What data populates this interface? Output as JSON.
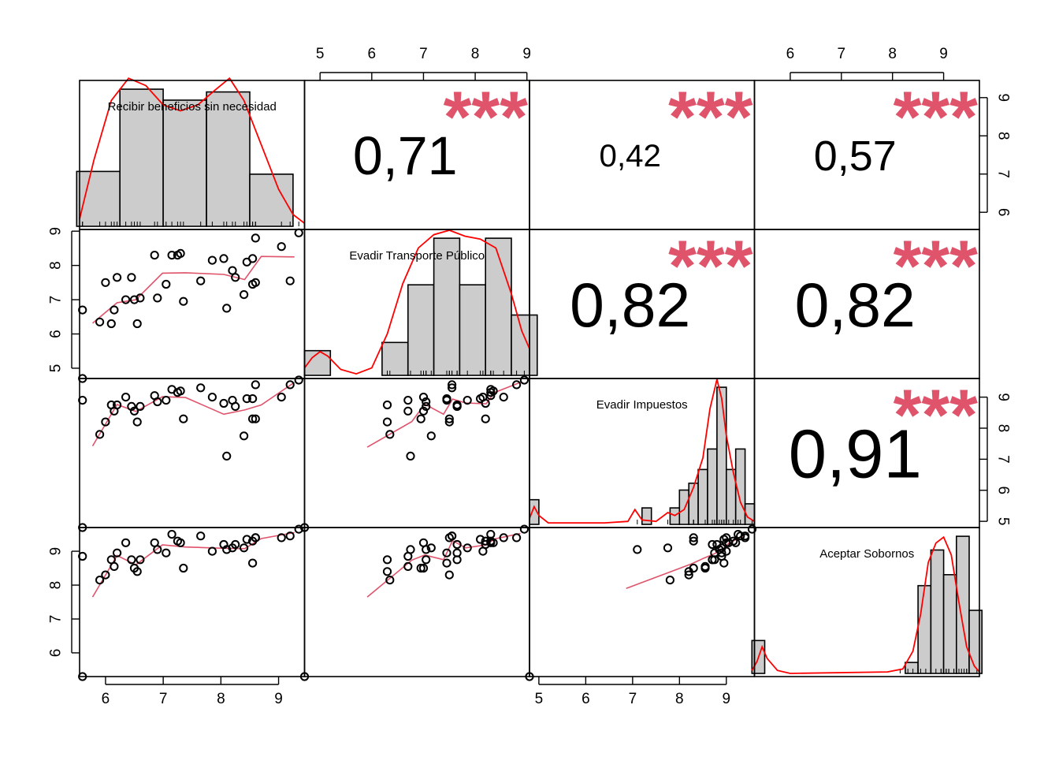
{
  "chart_data": {
    "type": "scatter-matrix",
    "variables": [
      "Recibir beneficios sin necesidad",
      "Evadir Transporte Público",
      "Evadir Impuestos",
      "Aceptar Sobornos"
    ],
    "ranges": [
      [
        5.55,
        9.45
      ],
      [
        4.7,
        9.05
      ],
      [
        4.8,
        9.6
      ],
      [
        5.3,
        9.7
      ]
    ],
    "ticks": [
      [
        "6",
        "7",
        "8",
        "9"
      ],
      [
        "5",
        "6",
        "7",
        "8",
        "9"
      ],
      [
        "5",
        "6",
        "7",
        "8",
        "9"
      ],
      [
        "6",
        "7",
        "8",
        "9"
      ]
    ],
    "correlations": [
      {
        "pair": [
          1,
          2
        ],
        "value": "0,71",
        "stars": "***",
        "scale": 1.1
      },
      {
        "pair": [
          1,
          3
        ],
        "value": "0,42",
        "stars": "***",
        "scale": 0.65
      },
      {
        "pair": [
          1,
          4
        ],
        "value": "0,57",
        "stars": "***",
        "scale": 0.87
      },
      {
        "pair": [
          2,
          3
        ],
        "value": "0,82",
        "stars": "***",
        "scale": 1.27
      },
      {
        "pair": [
          2,
          4
        ],
        "value": "0,82",
        "stars": "***",
        "scale": 1.27
      },
      {
        "pair": [
          3,
          4
        ],
        "value": "0,91",
        "stars": "***",
        "scale": 1.4
      }
    ],
    "observations": [
      [
        5.6,
        4.7,
        4.8,
        5.3
      ],
      [
        5.6,
        6.7,
        8.9,
        8.85
      ],
      [
        5.9,
        6.35,
        7.8,
        8.15
      ],
      [
        6.0,
        7.5,
        8.2,
        8.3
      ],
      [
        6.1,
        6.3,
        8.75,
        8.75
      ],
      [
        6.15,
        6.7,
        8.55,
        8.55
      ],
      [
        6.2,
        7.65,
        8.75,
        8.95
      ],
      [
        6.35,
        7.0,
        9.0,
        9.25
      ],
      [
        6.45,
        7.65,
        8.7,
        8.75
      ],
      [
        6.5,
        7.0,
        8.55,
        8.5
      ],
      [
        6.55,
        6.3,
        8.2,
        8.4
      ],
      [
        6.6,
        7.05,
        8.7,
        8.75
      ],
      [
        6.85,
        8.3,
        9.05,
        9.25
      ],
      [
        6.9,
        7.05,
        8.85,
        9.05
      ],
      [
        7.05,
        7.45,
        8.9,
        8.95
      ],
      [
        7.15,
        8.3,
        9.25,
        9.5
      ],
      [
        7.25,
        8.3,
        9.15,
        9.3
      ],
      [
        7.3,
        8.35,
        9.2,
        9.25
      ],
      [
        7.35,
        6.95,
        8.3,
        8.5
      ],
      [
        7.65,
        7.55,
        9.3,
        9.45
      ],
      [
        7.85,
        8.15,
        9.0,
        9.0
      ],
      [
        8.05,
        8.2,
        8.8,
        9.2
      ],
      [
        8.1,
        6.75,
        7.1,
        9.05
      ],
      [
        8.2,
        7.85,
        8.9,
        9.1
      ],
      [
        8.25,
        7.65,
        8.7,
        9.2
      ],
      [
        8.4,
        7.15,
        7.75,
        9.1
      ],
      [
        8.45,
        8.1,
        8.95,
        9.35
      ],
      [
        8.55,
        7.45,
        8.95,
        8.65
      ],
      [
        8.55,
        8.2,
        8.3,
        9.3
      ],
      [
        8.6,
        8.8,
        9.4,
        9.4
      ],
      [
        8.6,
        7.5,
        8.3,
        9.4
      ],
      [
        9.05,
        8.55,
        9.0,
        9.4
      ],
      [
        9.2,
        7.55,
        9.4,
        9.45
      ],
      [
        9.35,
        8.95,
        9.55,
        9.65
      ]
    ],
    "histograms": [
      {
        "breaks": [
          5.5,
          6.25,
          7.0,
          7.75,
          8.5,
          9.25
        ],
        "heights": [
          0.4,
          1.0,
          0.92,
          0.98,
          0.38
        ]
      },
      {
        "breaks": [
          4.7,
          5.2,
          5.7,
          6.2,
          6.7,
          7.2,
          7.7,
          8.2,
          8.7,
          9.2
        ],
        "heights": [
          0.18,
          0.0,
          0.0,
          0.24,
          0.66,
          1.0,
          0.66,
          1.0,
          0.44
        ]
      },
      {
        "breaks": [
          4.8,
          5.0,
          5.2,
          5.4,
          5.6,
          5.8,
          6.0,
          6.2,
          6.4,
          6.6,
          6.8,
          7.0,
          7.2,
          7.4,
          7.6,
          7.8,
          8.0,
          8.2,
          8.4,
          8.6,
          8.8,
          9.0,
          9.2,
          9.4,
          9.6
        ],
        "heights": [
          0.18,
          0,
          0,
          0,
          0,
          0,
          0,
          0,
          0,
          0,
          0,
          0,
          0.12,
          0,
          0,
          0.12,
          0.25,
          0.3,
          0.4,
          0.55,
          1.0,
          0.4,
          0.55,
          0.15
        ]
      },
      {
        "breaks": [
          5.25,
          5.5,
          5.75,
          6.0,
          6.25,
          6.5,
          6.75,
          7.0,
          7.25,
          7.5,
          7.75,
          8.0,
          8.25,
          8.5,
          8.75,
          9.0,
          9.25,
          9.5,
          9.75
        ],
        "heights": [
          0.24,
          0,
          0,
          0,
          0,
          0,
          0,
          0,
          0,
          0,
          0,
          0,
          0.08,
          0.64,
          0.9,
          0.72,
          1.0,
          0.46,
          0.12
        ]
      }
    ],
    "densities": [
      [
        [
          5.55,
          0.05
        ],
        [
          5.8,
          0.45
        ],
        [
          6.1,
          0.85
        ],
        [
          6.4,
          1.0
        ],
        [
          6.7,
          0.95
        ],
        [
          7.0,
          0.82
        ],
        [
          7.3,
          0.78
        ],
        [
          7.6,
          0.82
        ],
        [
          7.9,
          0.92
        ],
        [
          8.15,
          1.0
        ],
        [
          8.4,
          0.85
        ],
        [
          8.7,
          0.55
        ],
        [
          9.0,
          0.25
        ],
        [
          9.25,
          0.08
        ],
        [
          9.45,
          0.02
        ]
      ],
      [
        [
          4.7,
          0.05
        ],
        [
          4.85,
          0.12
        ],
        [
          5.0,
          0.16
        ],
        [
          5.15,
          0.13
        ],
        [
          5.4,
          0.04
        ],
        [
          5.7,
          0.01
        ],
        [
          6.0,
          0.05
        ],
        [
          6.3,
          0.28
        ],
        [
          6.6,
          0.62
        ],
        [
          6.9,
          0.86
        ],
        [
          7.2,
          0.95
        ],
        [
          7.5,
          0.98
        ],
        [
          7.8,
          0.94
        ],
        [
          8.1,
          0.92
        ],
        [
          8.4,
          0.86
        ],
        [
          8.7,
          0.55
        ],
        [
          8.9,
          0.3
        ],
        [
          9.05,
          0.18
        ]
      ],
      [
        [
          4.8,
          0.04
        ],
        [
          4.9,
          0.12
        ],
        [
          5.0,
          0.06
        ],
        [
          5.2,
          0.01
        ],
        [
          6.4,
          0.01
        ],
        [
          6.9,
          0.02
        ],
        [
          7.05,
          0.1
        ],
        [
          7.2,
          0.03
        ],
        [
          7.5,
          0.02
        ],
        [
          7.75,
          0.08
        ],
        [
          7.9,
          0.06
        ],
        [
          8.1,
          0.1
        ],
        [
          8.3,
          0.25
        ],
        [
          8.5,
          0.45
        ],
        [
          8.65,
          0.78
        ],
        [
          8.8,
          0.98
        ],
        [
          8.9,
          0.85
        ],
        [
          9.0,
          0.6
        ],
        [
          9.15,
          0.35
        ],
        [
          9.3,
          0.15
        ],
        [
          9.45,
          0.05
        ],
        [
          9.6,
          0.02
        ]
      ],
      [
        [
          5.25,
          0.02
        ],
        [
          5.35,
          0.08
        ],
        [
          5.45,
          0.18
        ],
        [
          5.55,
          0.1
        ],
        [
          5.75,
          0.02
        ],
        [
          6.0,
          0.0
        ],
        [
          7.9,
          0.01
        ],
        [
          8.2,
          0.03
        ],
        [
          8.4,
          0.15
        ],
        [
          8.55,
          0.4
        ],
        [
          8.7,
          0.75
        ],
        [
          8.85,
          0.88
        ],
        [
          9.0,
          0.92
        ],
        [
          9.15,
          0.8
        ],
        [
          9.3,
          0.48
        ],
        [
          9.45,
          0.18
        ],
        [
          9.6,
          0.05
        ],
        [
          9.7,
          0.01
        ]
      ]
    ],
    "colors": {
      "histogram_fill": "#cccccc",
      "density_line": "#ff0000",
      "smooth_line": "#df536b",
      "stars": "#df536b",
      "frame": "#000000"
    }
  }
}
